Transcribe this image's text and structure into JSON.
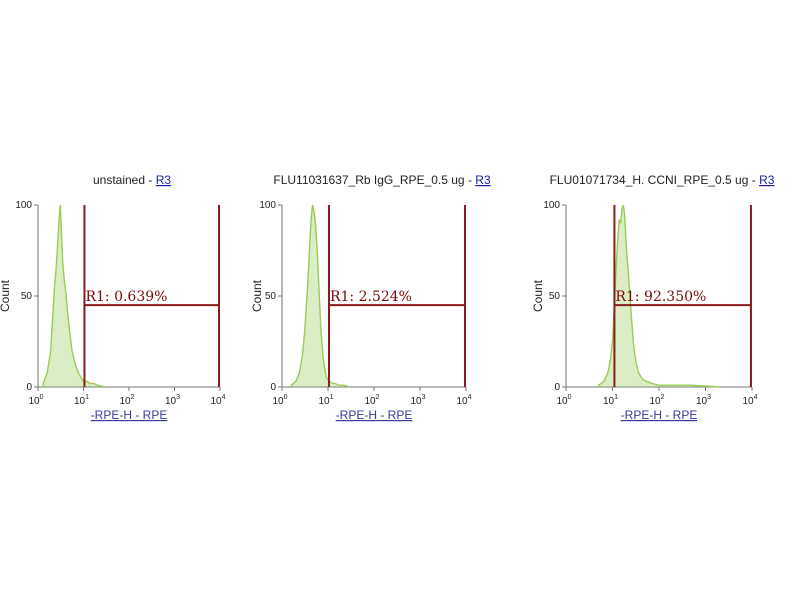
{
  "chart_data": [
    {
      "type": "area",
      "title": "unstained",
      "title_link": "R3",
      "xlabel": "-RPE-H - RPE",
      "ylabel": "Count",
      "x_scale": "log",
      "xlim": [
        1,
        10000
      ],
      "ylim": [
        0,
        100
      ],
      "x_ticks": [
        "10",
        "10",
        "10",
        "10",
        "10"
      ],
      "x_tick_exponents": [
        "0",
        "1",
        "2",
        "3",
        "4"
      ],
      "y_ticks": [
        "0",
        "50",
        "100"
      ],
      "series": [
        {
          "color": "#99cc55",
          "x": [
            1.3,
            1.6,
            1.9,
            2.1,
            2.3,
            2.5,
            2.7,
            2.9,
            3.1,
            3.3,
            3.5,
            3.8,
            4.1,
            4.5,
            5.0,
            5.6,
            6.3,
            7.1,
            8.0,
            9.0,
            10.0,
            12.0,
            14.0,
            17.0,
            20.0,
            30.0
          ],
          "y": [
            2,
            8,
            20,
            38,
            55,
            65,
            78,
            92,
            100,
            82,
            68,
            58,
            52,
            40,
            30,
            20,
            14,
            10,
            7,
            5,
            3,
            3,
            2,
            2,
            1,
            0
          ]
        }
      ],
      "gates": [
        {
          "type": "region",
          "x_start": 10.5,
          "x_end": 9500,
          "y_level": 45,
          "label": "R1: 0.639%"
        }
      ]
    },
    {
      "type": "area",
      "title": "FLU11031637_Rb IgG_RPE_0.5 ug",
      "title_link": "R3",
      "xlabel": "-RPE-H - RPE",
      "ylabel": "Count",
      "x_scale": "log",
      "xlim": [
        1,
        10000
      ],
      "ylim": [
        0,
        100
      ],
      "x_ticks": [
        "10",
        "10",
        "10",
        "10",
        "10"
      ],
      "x_tick_exponents": [
        "0",
        "1",
        "2",
        "3",
        "4"
      ],
      "y_ticks": [
        "0",
        "50",
        "100"
      ],
      "series": [
        {
          "color": "#99cc55",
          "x": [
            1.6,
            2.0,
            2.4,
            2.8,
            3.1,
            3.4,
            3.7,
            4.0,
            4.3,
            4.6,
            5.0,
            5.4,
            5.8,
            6.2,
            6.6,
            7.0,
            7.5,
            8.0,
            8.6,
            9.3,
            10.0,
            11.0,
            12.5,
            14.0,
            17.0,
            22.0,
            30.0
          ],
          "y": [
            1,
            3,
            8,
            18,
            30,
            45,
            60,
            78,
            92,
            100,
            96,
            88,
            76,
            60,
            45,
            32,
            22,
            14,
            9,
            5,
            4,
            3,
            2,
            2,
            1,
            1,
            0
          ]
        }
      ],
      "gates": [
        {
          "type": "region",
          "x_start": 10.5,
          "x_end": 9500,
          "y_level": 45,
          "label": "R1: 2.524%"
        }
      ]
    },
    {
      "type": "area",
      "title": "FLU01071734_H. CCNI_RPE_0.5 ug",
      "title_link": "R3",
      "xlabel": "-RPE-H - RPE",
      "ylabel": "Count",
      "x_scale": "log",
      "xlim": [
        1,
        10000
      ],
      "ylim": [
        0,
        100
      ],
      "x_ticks": [
        "10",
        "10",
        "10",
        "10",
        "10"
      ],
      "x_tick_exponents": [
        "0",
        "1",
        "2",
        "3",
        "4"
      ],
      "y_ticks": [
        "0",
        "50",
        "100"
      ],
      "series": [
        {
          "color": "#99cc55",
          "x": [
            5.0,
            6.5,
            8.0,
            9.0,
            10.0,
            11.0,
            12.0,
            13.0,
            14.0,
            15.0,
            16.0,
            17.0,
            18.0,
            19.0,
            20.0,
            22.0,
            24.0,
            26.0,
            28.0,
            30.0,
            33.0,
            36.0,
            40.0,
            45.0,
            55.0,
            70.0,
            100.0,
            200.0,
            500.0,
            2000.0
          ],
          "y": [
            1,
            3,
            8,
            15,
            25,
            45,
            66,
            82,
            92,
            90,
            98,
            100,
            96,
            85,
            75,
            62,
            48,
            36,
            25,
            18,
            12,
            8,
            6,
            4,
            3,
            2,
            1,
            1,
            1,
            0
          ]
        }
      ],
      "gates": [
        {
          "type": "region",
          "x_start": 11,
          "x_end": 9500,
          "y_level": 45,
          "label": "R1: 92.350%"
        }
      ]
    }
  ]
}
